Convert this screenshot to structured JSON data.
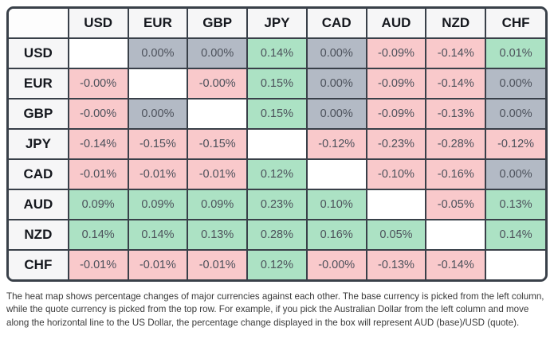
{
  "colors": {
    "positive": "#ACE2C4",
    "negative": "#F9C9CB",
    "neutral": "#B3BAC5",
    "border": "#394049",
    "headerBg": "#F6F6F7",
    "labelText": "#15181E",
    "cellText": "#4C515B",
    "footerText": "#3A3A3A"
  },
  "table": {
    "columns": [
      "",
      "USD",
      "EUR",
      "GBP",
      "JPY",
      "CAD",
      "AUD",
      "NZD",
      "CHF"
    ],
    "rows": [
      {
        "label": "USD",
        "cells": [
          {
            "value": "",
            "tone": "self"
          },
          {
            "value": "0.00%",
            "tone": "zero"
          },
          {
            "value": "0.00%",
            "tone": "zero"
          },
          {
            "value": "0.14%",
            "tone": "pos"
          },
          {
            "value": "0.00%",
            "tone": "zero"
          },
          {
            "value": "-0.09%",
            "tone": "neg"
          },
          {
            "value": "-0.14%",
            "tone": "neg"
          },
          {
            "value": "0.01%",
            "tone": "pos"
          }
        ]
      },
      {
        "label": "EUR",
        "cells": [
          {
            "value": "-0.00%",
            "tone": "neg"
          },
          {
            "value": "",
            "tone": "self"
          },
          {
            "value": "-0.00%",
            "tone": "neg"
          },
          {
            "value": "0.15%",
            "tone": "pos"
          },
          {
            "value": "0.00%",
            "tone": "zero"
          },
          {
            "value": "-0.09%",
            "tone": "neg"
          },
          {
            "value": "-0.14%",
            "tone": "neg"
          },
          {
            "value": "0.00%",
            "tone": "zero"
          }
        ]
      },
      {
        "label": "GBP",
        "cells": [
          {
            "value": "-0.00%",
            "tone": "neg"
          },
          {
            "value": "0.00%",
            "tone": "zero"
          },
          {
            "value": "",
            "tone": "self"
          },
          {
            "value": "0.15%",
            "tone": "pos"
          },
          {
            "value": "0.00%",
            "tone": "zero"
          },
          {
            "value": "-0.09%",
            "tone": "neg"
          },
          {
            "value": "-0.13%",
            "tone": "neg"
          },
          {
            "value": "0.00%",
            "tone": "zero"
          }
        ]
      },
      {
        "label": "JPY",
        "cells": [
          {
            "value": "-0.14%",
            "tone": "neg"
          },
          {
            "value": "-0.15%",
            "tone": "neg"
          },
          {
            "value": "-0.15%",
            "tone": "neg"
          },
          {
            "value": "",
            "tone": "self"
          },
          {
            "value": "-0.12%",
            "tone": "neg"
          },
          {
            "value": "-0.23%",
            "tone": "neg"
          },
          {
            "value": "-0.28%",
            "tone": "neg"
          },
          {
            "value": "-0.12%",
            "tone": "neg"
          }
        ]
      },
      {
        "label": "CAD",
        "cells": [
          {
            "value": "-0.01%",
            "tone": "neg"
          },
          {
            "value": "-0.01%",
            "tone": "neg"
          },
          {
            "value": "-0.01%",
            "tone": "neg"
          },
          {
            "value": "0.12%",
            "tone": "pos"
          },
          {
            "value": "",
            "tone": "self"
          },
          {
            "value": "-0.10%",
            "tone": "neg"
          },
          {
            "value": "-0.16%",
            "tone": "neg"
          },
          {
            "value": "0.00%",
            "tone": "zero"
          }
        ]
      },
      {
        "label": "AUD",
        "cells": [
          {
            "value": "0.09%",
            "tone": "pos"
          },
          {
            "value": "0.09%",
            "tone": "pos"
          },
          {
            "value": "0.09%",
            "tone": "pos"
          },
          {
            "value": "0.23%",
            "tone": "pos"
          },
          {
            "value": "0.10%",
            "tone": "pos"
          },
          {
            "value": "",
            "tone": "self"
          },
          {
            "value": "-0.05%",
            "tone": "neg"
          },
          {
            "value": "0.13%",
            "tone": "pos"
          }
        ]
      },
      {
        "label": "NZD",
        "cells": [
          {
            "value": "0.14%",
            "tone": "pos"
          },
          {
            "value": "0.14%",
            "tone": "pos"
          },
          {
            "value": "0.13%",
            "tone": "pos"
          },
          {
            "value": "0.28%",
            "tone": "pos"
          },
          {
            "value": "0.16%",
            "tone": "pos"
          },
          {
            "value": "0.05%",
            "tone": "pos"
          },
          {
            "value": "",
            "tone": "self"
          },
          {
            "value": "0.14%",
            "tone": "pos"
          }
        ]
      },
      {
        "label": "CHF",
        "cells": [
          {
            "value": "-0.01%",
            "tone": "neg"
          },
          {
            "value": "-0.01%",
            "tone": "neg"
          },
          {
            "value": "-0.01%",
            "tone": "neg"
          },
          {
            "value": "0.12%",
            "tone": "pos"
          },
          {
            "value": "-0.00%",
            "tone": "neg"
          },
          {
            "value": "-0.13%",
            "tone": "neg"
          },
          {
            "value": "-0.14%",
            "tone": "neg"
          },
          {
            "value": "",
            "tone": "self"
          }
        ]
      }
    ]
  },
  "chart_data": {
    "type": "heatmap",
    "title": "Currency heat map: percentage changes of major currencies against each other",
    "base_currencies_rows": [
      "USD",
      "EUR",
      "GBP",
      "JPY",
      "CAD",
      "AUD",
      "NZD",
      "CHF"
    ],
    "quote_currencies_columns": [
      "USD",
      "EUR",
      "GBP",
      "JPY",
      "CAD",
      "AUD",
      "NZD",
      "CHF"
    ],
    "values_percent": [
      [
        null,
        0.0,
        0.0,
        0.14,
        0.0,
        -0.09,
        -0.14,
        0.01
      ],
      [
        -0.0,
        null,
        -0.0,
        0.15,
        0.0,
        -0.09,
        -0.14,
        0.0
      ],
      [
        -0.0,
        0.0,
        null,
        0.15,
        0.0,
        -0.09,
        -0.13,
        0.0
      ],
      [
        -0.14,
        -0.15,
        -0.15,
        null,
        -0.12,
        -0.23,
        -0.28,
        -0.12
      ],
      [
        -0.01,
        -0.01,
        -0.01,
        0.12,
        null,
        -0.1,
        -0.16,
        0.0
      ],
      [
        0.09,
        0.09,
        0.09,
        0.23,
        0.1,
        null,
        -0.05,
        0.13
      ],
      [
        0.14,
        0.14,
        0.13,
        0.28,
        0.16,
        0.05,
        null,
        0.14
      ],
      [
        -0.01,
        -0.01,
        -0.01,
        0.12,
        -0.0,
        -0.13,
        -0.14,
        null
      ]
    ],
    "color_legend": {
      "positive": "#ACE2C4",
      "negative": "#F9C9CB",
      "zero_neutral": "#B3BAC5",
      "diagonal_blank": "#FFFFFF"
    }
  },
  "footer": {
    "text": "The heat map shows percentage changes of major currencies against each other. The base currency is picked from the left column, while the quote currency is picked from the top row. For example, if you pick the Australian Dollar from the left column and move along the horizontal line to the US Dollar, the percentage change displayed in the box will represent AUD (base)/USD (quote)."
  }
}
